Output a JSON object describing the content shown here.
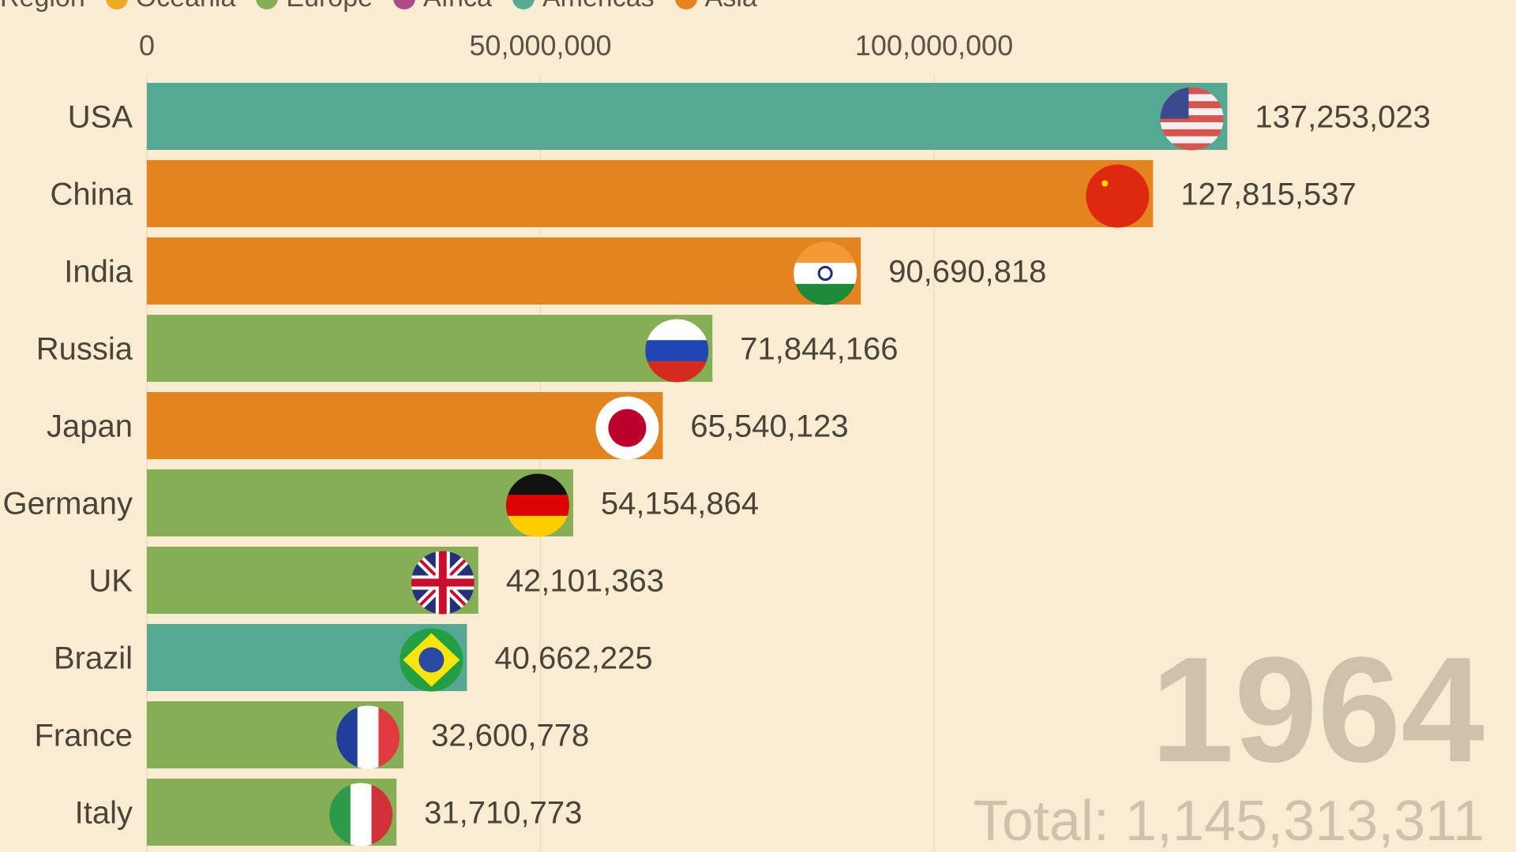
{
  "chart_data": {
    "type": "bar",
    "orientation": "horizontal",
    "legend": {
      "title": "Region",
      "placement": "top-left",
      "entries": [
        {
          "name": "Oceania",
          "color": "#f0a81e"
        },
        {
          "name": "Europe",
          "color": "#85ae55"
        },
        {
          "name": "Africa",
          "color": "#b04a86"
        },
        {
          "name": "Americas",
          "color": "#55a891"
        },
        {
          "name": "Asia",
          "color": "#e3841f"
        }
      ]
    },
    "xlim": [
      0,
      137253023
    ],
    "xticks": [
      0,
      50000000,
      100000000
    ],
    "xtick_labels": [
      "0",
      "50,000,000",
      "100,000,000"
    ],
    "grid": true,
    "categories": [
      "USA",
      "China",
      "India",
      "Russia",
      "Japan",
      "Germany",
      "UK",
      "Brazil",
      "France",
      "Italy"
    ],
    "values": [
      137253023,
      127815537,
      90690818,
      71844166,
      65540123,
      54154864,
      42101363,
      40662225,
      32600778,
      31710773
    ],
    "value_labels": [
      "137,253,023",
      "127,815,537",
      "90,690,818",
      "71,844,166",
      "65,540,123",
      "54,154,864",
      "42,101,363",
      "40,662,225",
      "32,600,778",
      "31,710,773"
    ],
    "regions": [
      "Americas",
      "Asia",
      "Asia",
      "Europe",
      "Asia",
      "Europe",
      "Europe",
      "Americas",
      "Europe",
      "Europe"
    ],
    "flags": [
      "us-flag",
      "china-flag",
      "india-flag",
      "russia-flag",
      "japan-flag",
      "germany-flag",
      "uk-flag",
      "brazil-flag",
      "france-flag",
      "italy-flag"
    ],
    "year": "1964",
    "total_label": "Total: 1,145,313,311"
  }
}
